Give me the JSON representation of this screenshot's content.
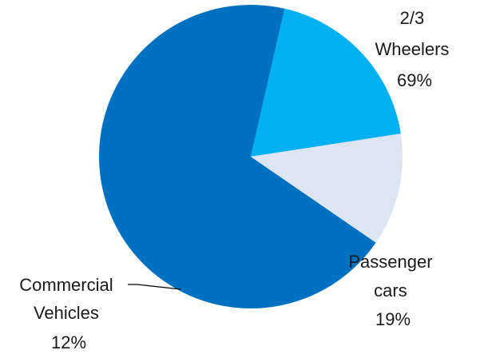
{
  "chart_data": {
    "type": "pie",
    "slices": [
      {
        "name_lines": [
          "2/3",
          "Wheelers"
        ],
        "value_label": "69%",
        "value": 69,
        "color": "#0070C0"
      },
      {
        "name_lines": [
          "Passenger",
          "cars"
        ],
        "value_label": "19%",
        "value": 19,
        "color": "#00B0F0"
      },
      {
        "name_lines": [
          "Commercial",
          "Vehicles"
        ],
        "value_label": "12%",
        "value": 12,
        "color": "#DCE6F2"
      }
    ],
    "leader_line_color": "#000000",
    "start_angle_deg": 124.5,
    "direction": "clockwise",
    "legend": "none"
  }
}
